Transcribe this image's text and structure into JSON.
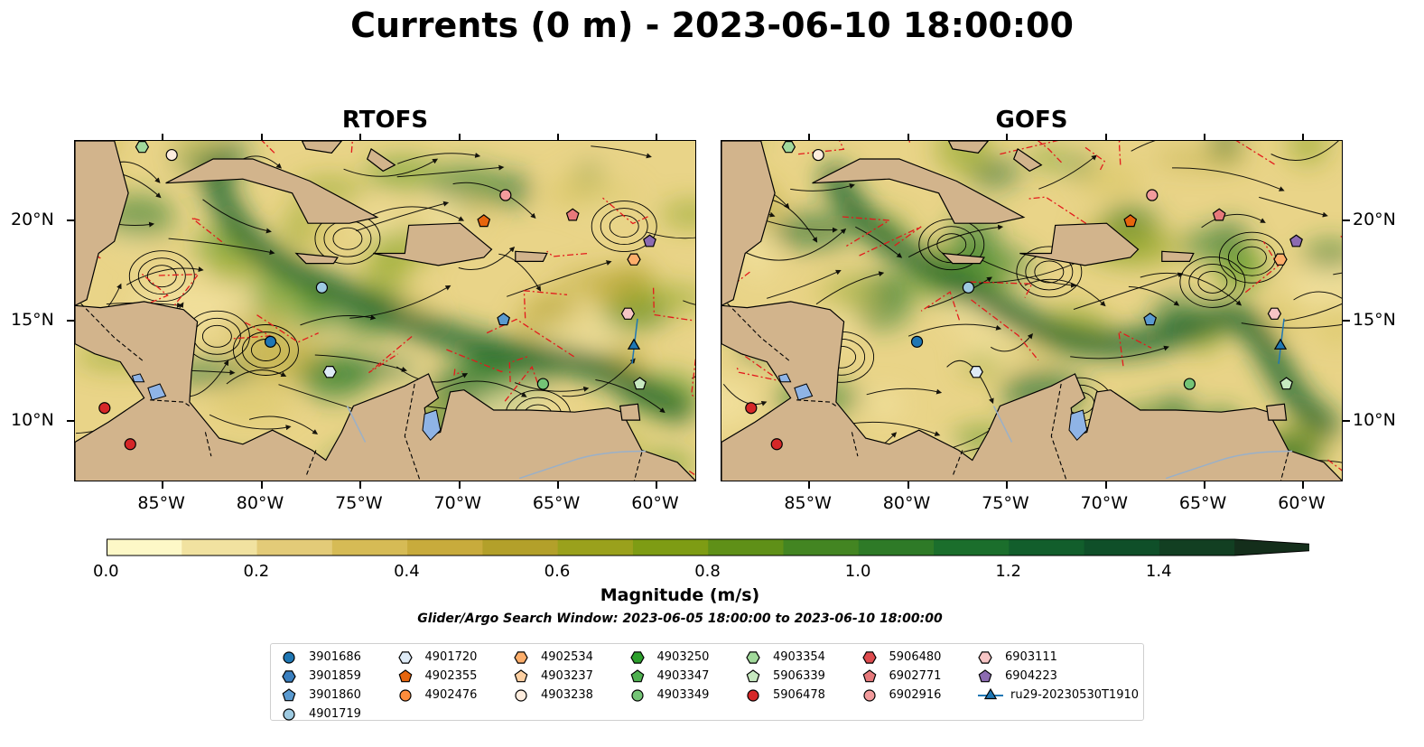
{
  "figure": {
    "title": "Currents (0 m) - 2023-06-10 18:00:00",
    "panels": [
      {
        "title": "RTOFS"
      },
      {
        "title": "GOFS"
      }
    ],
    "lon_ticks": [
      "85°W",
      "80°W",
      "75°W",
      "70°W",
      "65°W",
      "60°W"
    ],
    "lat_ticks": [
      "20°N",
      "15°N",
      "10°N"
    ],
    "colorbar": {
      "label": "Magnitude (m/s)",
      "ticks": [
        "0.0",
        "0.2",
        "0.4",
        "0.6",
        "0.8",
        "1.0",
        "1.2",
        "1.4"
      ],
      "range": [
        0,
        1.6
      ],
      "extend": "max",
      "colors": [
        "#fdf8c7",
        "#f1e2a0",
        "#e3cb78",
        "#d6bb55",
        "#c8ab3c",
        "#b3a02a",
        "#9aa11c",
        "#7e9c14",
        "#5f9018",
        "#438522",
        "#2e7a27",
        "#1b6e2c",
        "#125e2c",
        "#0f4f29",
        "#123f22",
        "#142e1b"
      ]
    },
    "search_window": "Glider/Argo Search Window: 2023-06-05 18:00:00 to 2023-06-10 18:00:00",
    "colors": {
      "land": "#d2b48c",
      "lake": "#8fb4e6",
      "isobath": "#e31a1c"
    }
  },
  "legend": [
    {
      "label": "3901686",
      "marker": "circle",
      "color": "#1f77b4"
    },
    {
      "label": "3901859",
      "marker": "hexagon",
      "color": "#3a7fbf"
    },
    {
      "label": "3901860",
      "marker": "pentagon",
      "color": "#5a9ad0"
    },
    {
      "label": "4901719",
      "marker": "circle",
      "color": "#9ecae1"
    },
    {
      "label": "4901720",
      "marker": "hexagon",
      "color": "#deebf7"
    },
    {
      "label": "4902355",
      "marker": "pentagon",
      "color": "#e6650d"
    },
    {
      "label": "4902476",
      "marker": "circle",
      "color": "#fd8d3c"
    },
    {
      "label": "4902534",
      "marker": "hexagon",
      "color": "#fdae6b"
    },
    {
      "label": "4903237",
      "marker": "pentagon",
      "color": "#fdd0a2"
    },
    {
      "label": "4903238",
      "marker": "circle",
      "color": "#feedde"
    },
    {
      "label": "4903250",
      "marker": "hexagon",
      "color": "#2ca02c"
    },
    {
      "label": "4903347",
      "marker": "pentagon",
      "color": "#4fb050"
    },
    {
      "label": "4903349",
      "marker": "circle",
      "color": "#74c476"
    },
    {
      "label": "4903354",
      "marker": "hexagon",
      "color": "#a1d99b"
    },
    {
      "label": "5906339",
      "marker": "pentagon",
      "color": "#c7e9c0"
    },
    {
      "label": "5906478",
      "marker": "circle",
      "color": "#d62728"
    },
    {
      "label": "5906480",
      "marker": "hexagon",
      "color": "#de4c4f"
    },
    {
      "label": "6902771",
      "marker": "pentagon",
      "color": "#e7797b"
    },
    {
      "label": "6902916",
      "marker": "circle",
      "color": "#f29b9c"
    },
    {
      "label": "6903111",
      "marker": "hexagon",
      "color": "#f7c5c5"
    },
    {
      "label": "6904223",
      "marker": "pentagon",
      "color": "#8c6bb1"
    },
    {
      "label": "ru29-20230530T1910",
      "marker": "triangle-line",
      "color": "#1f77b4"
    }
  ],
  "floats": [
    {
      "id": "3901686",
      "lon": -79.6,
      "lat": 14.0
    },
    {
      "id": "3901860",
      "lon": -67.8,
      "lat": 15.1
    },
    {
      "id": "4901719",
      "lon": -77.0,
      "lat": 16.7
    },
    {
      "id": "4901720",
      "lon": -76.6,
      "lat": 12.5
    },
    {
      "id": "4902355",
      "lon": -68.8,
      "lat": 20.0
    },
    {
      "id": "4902534",
      "lon": -61.2,
      "lat": 18.1
    },
    {
      "id": "4903238",
      "lon": -84.6,
      "lat": 23.3
    },
    {
      "id": "4903349",
      "lon": -65.8,
      "lat": 11.9
    },
    {
      "id": "4903354",
      "lon": -86.1,
      "lat": 23.7
    },
    {
      "id": "5906339",
      "lon": -60.9,
      "lat": 11.9
    },
    {
      "id": "5906478",
      "lon": -88.0,
      "lat": 10.7
    },
    {
      "id": "5906478",
      "lon": -86.7,
      "lat": 8.9
    },
    {
      "id": "6902771",
      "lon": -64.3,
      "lat": 20.3
    },
    {
      "id": "6902916",
      "lon": -67.7,
      "lat": 21.3
    },
    {
      "id": "6903111",
      "lon": -61.5,
      "lat": 15.4
    },
    {
      "id": "6904223",
      "lon": -60.4,
      "lat": 19.0
    },
    {
      "id": "ru29-20230530T1910",
      "lon": -61.2,
      "lat": 13.8
    }
  ],
  "glider_track_marker": {
    "id": "ru29-20230530T1910"
  }
}
